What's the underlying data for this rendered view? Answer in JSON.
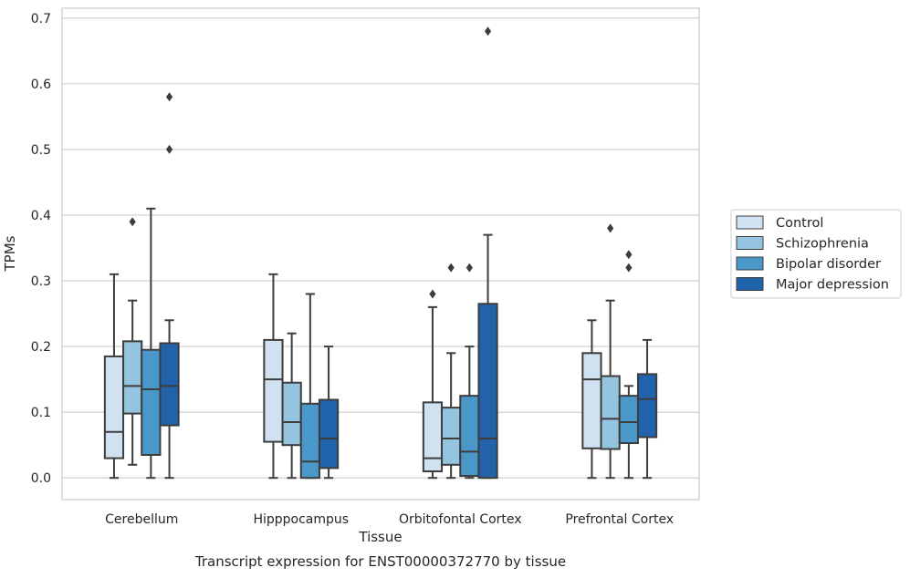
{
  "chart_data": {
    "type": "boxplot",
    "title": "Transcript expression for ENST00000372770 by tissue",
    "xlabel": "Tissue",
    "ylabel": "TPMs",
    "ylim": [
      -0.033,
      0.715
    ],
    "yticks": [
      "0.0",
      "0.1",
      "0.2",
      "0.3",
      "0.4",
      "0.5",
      "0.6",
      "0.7"
    ],
    "ytick_values": [
      0,
      0.1,
      0.2,
      0.3,
      0.4,
      0.5,
      0.6,
      0.7
    ],
    "grid": true,
    "legend_position": "right",
    "categories": [
      "Cerebellum",
      "Hipppocampus",
      "Orbitofontal Cortex",
      "Prefrontal Cortex"
    ],
    "series": [
      {
        "name": "Control",
        "color": "#d0e1f2",
        "boxes": [
          {
            "whislo": 0,
            "q1": 0.03,
            "med": 0.07,
            "q3": 0.185,
            "whishi": 0.31,
            "fliers": []
          },
          {
            "whislo": 0,
            "q1": 0.055,
            "med": 0.15,
            "q3": 0.21,
            "whishi": 0.31,
            "fliers": []
          },
          {
            "whislo": 0,
            "q1": 0.01,
            "med": 0.03,
            "q3": 0.115,
            "whishi": 0.26,
            "fliers": [
              0.28
            ]
          },
          {
            "whislo": 0,
            "q1": 0.045,
            "med": 0.15,
            "q3": 0.19,
            "whishi": 0.24,
            "fliers": []
          }
        ]
      },
      {
        "name": "Schizophrenia",
        "color": "#94c4df",
        "boxes": [
          {
            "whislo": 0.02,
            "q1": 0.098,
            "med": 0.14,
            "q3": 0.208,
            "whishi": 0.27,
            "fliers": [
              0.39
            ]
          },
          {
            "whislo": 0,
            "q1": 0.05,
            "med": 0.085,
            "q3": 0.145,
            "whishi": 0.22,
            "fliers": []
          },
          {
            "whislo": 0,
            "q1": 0.02,
            "med": 0.06,
            "q3": 0.107,
            "whishi": 0.19,
            "fliers": [
              0.32
            ]
          },
          {
            "whislo": 0,
            "q1": 0.044,
            "med": 0.09,
            "q3": 0.155,
            "whishi": 0.27,
            "fliers": [
              0.38
            ]
          }
        ]
      },
      {
        "name": "Bipolar disorder",
        "color": "#4a98c9",
        "boxes": [
          {
            "whislo": 0,
            "q1": 0.035,
            "med": 0.135,
            "q3": 0.195,
            "whishi": 0.41,
            "fliers": []
          },
          {
            "whislo": 0,
            "q1": 0,
            "med": 0.025,
            "q3": 0.113,
            "whishi": 0.28,
            "fliers": []
          },
          {
            "whislo": 0,
            "q1": 0.003,
            "med": 0.04,
            "q3": 0.125,
            "whishi": 0.2,
            "fliers": [
              0.32
            ]
          },
          {
            "whislo": 0,
            "q1": 0.053,
            "med": 0.085,
            "q3": 0.125,
            "whishi": 0.14,
            "fliers": [
              0.32,
              0.34
            ]
          }
        ]
      },
      {
        "name": "Major depression",
        "color": "#2163aa",
        "boxes": [
          {
            "whislo": 0,
            "q1": 0.08,
            "med": 0.14,
            "q3": 0.205,
            "whishi": 0.24,
            "fliers": [
              0.5,
              0.58
            ]
          },
          {
            "whislo": 0,
            "q1": 0.015,
            "med": 0.06,
            "q3": 0.119,
            "whishi": 0.2,
            "fliers": []
          },
          {
            "whislo": 0,
            "q1": 0,
            "med": 0.06,
            "q3": 0.265,
            "whishi": 0.37,
            "fliers": [
              0.68
            ]
          },
          {
            "whislo": 0,
            "q1": 0.062,
            "med": 0.12,
            "q3": 0.158,
            "whishi": 0.21,
            "fliers": []
          }
        ]
      }
    ]
  }
}
